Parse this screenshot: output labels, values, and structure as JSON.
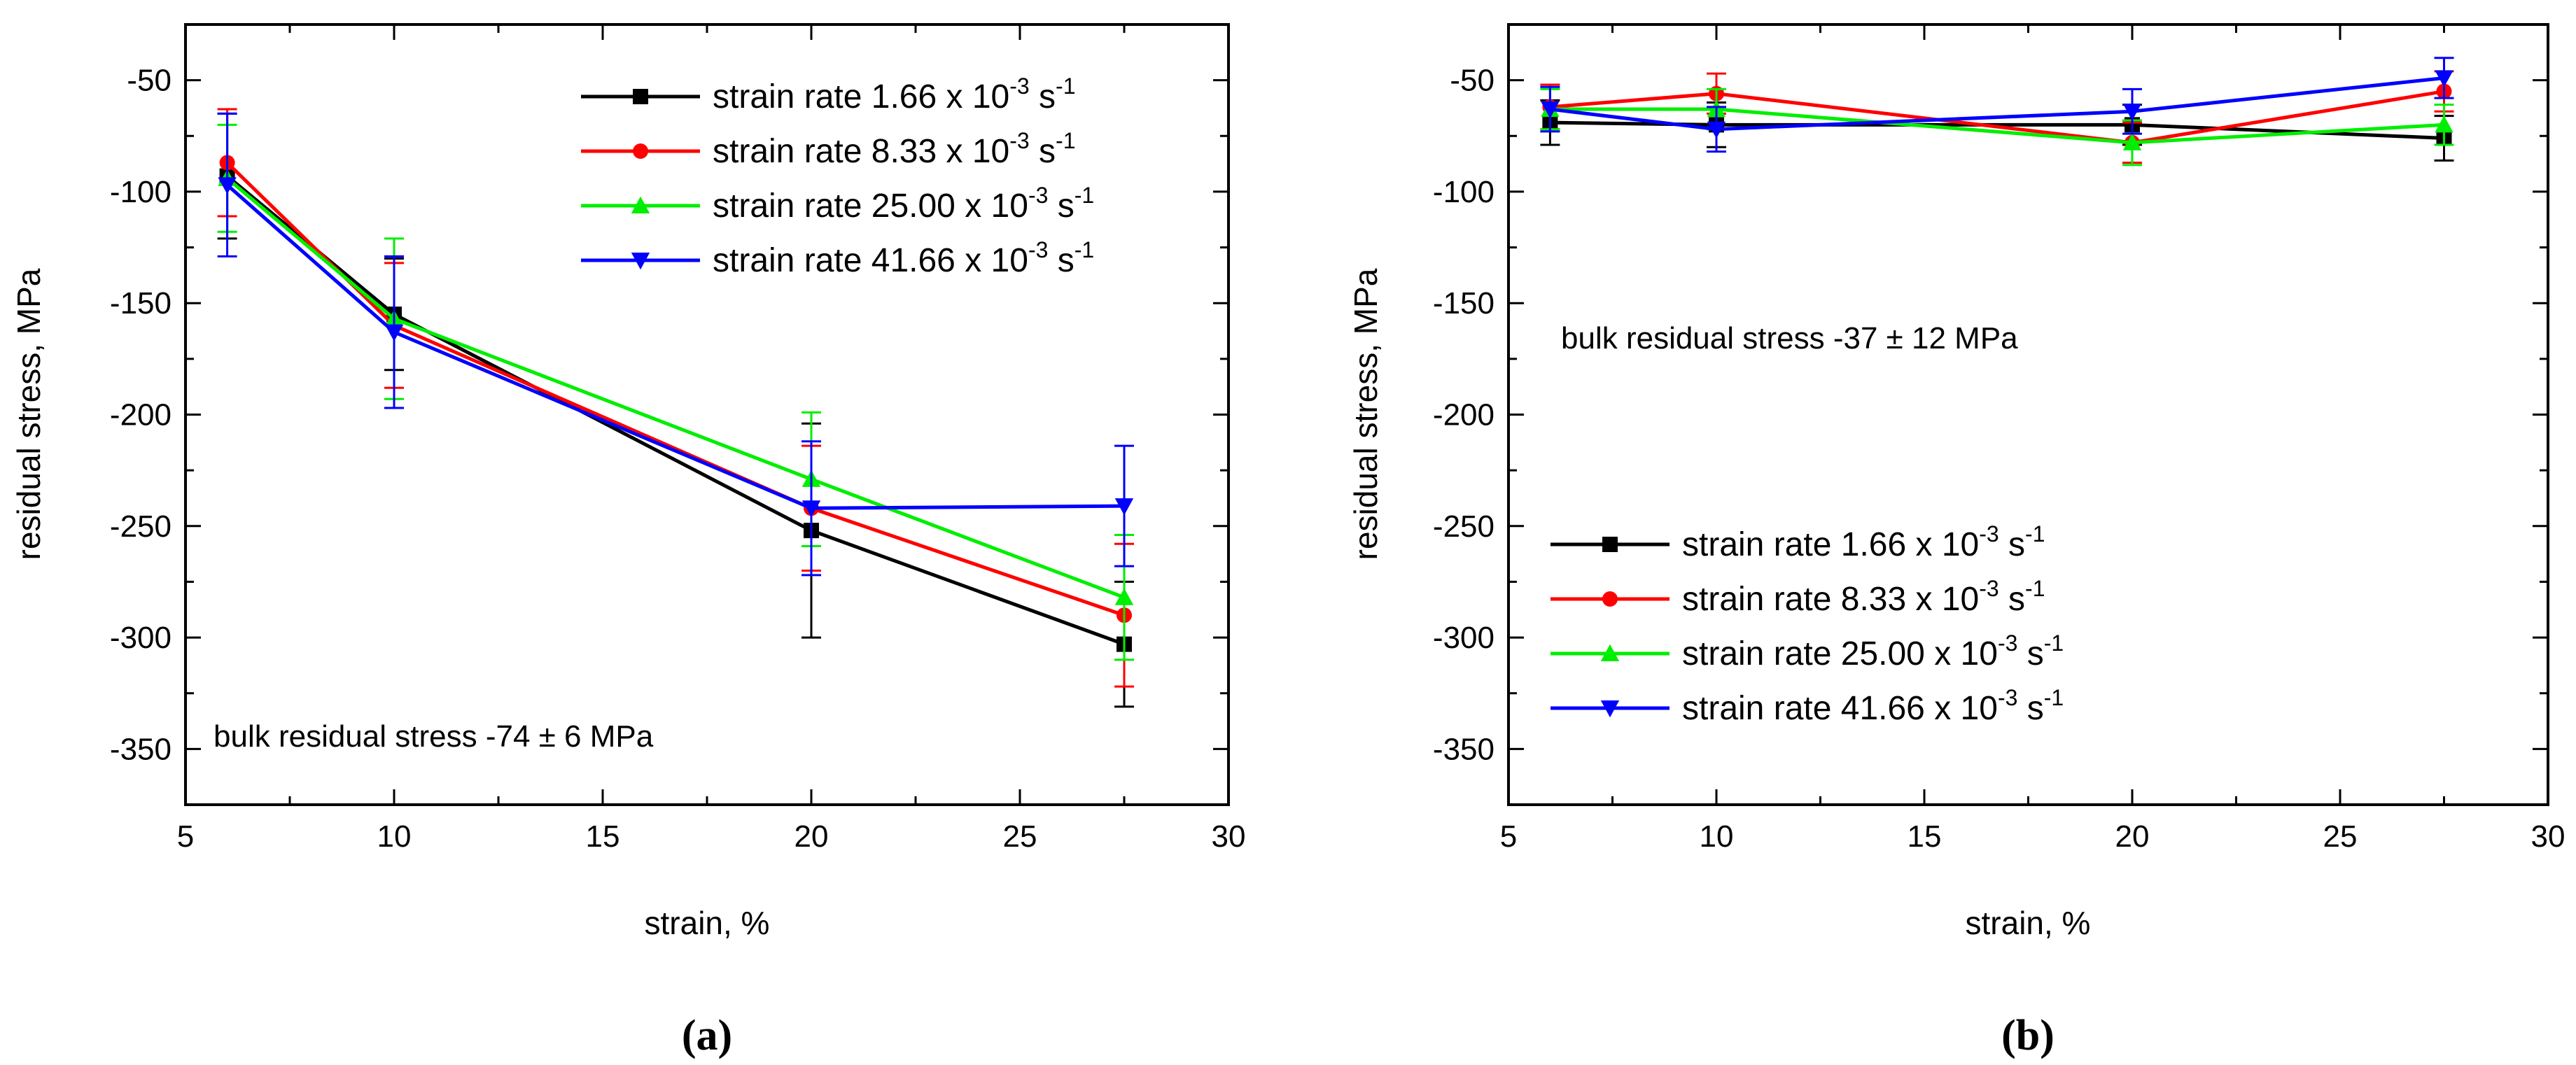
{
  "panels": [
    {
      "label": "(a)"
    },
    {
      "label": "(b)"
    }
  ],
  "chart_data": [
    {
      "type": "line",
      "xlabel": "strain, %",
      "ylabel": "residual stress, MPa",
      "xlim": [
        5,
        30
      ],
      "ylim": [
        -375,
        -25
      ],
      "x_ticks": [
        5,
        10,
        15,
        20,
        25,
        30
      ],
      "y_ticks": [
        -50,
        -100,
        -150,
        -200,
        -250,
        -300,
        -350
      ],
      "legend_position": "top-right",
      "annotation": "bulk residual stress -74 ± 6 MPa",
      "x": [
        6,
        10,
        20,
        27.5
      ],
      "series": [
        {
          "name": "strain rate 1.66 x 10-3 s-1",
          "rate": "1.66",
          "color": "#000000",
          "marker": "square",
          "values": [
            -93,
            -155,
            -252,
            -303
          ],
          "errors": [
            28,
            25,
            48,
            28
          ]
        },
        {
          "name": "strain rate 8.33 x 10-3 s-1",
          "rate": "8.33",
          "color": "#ff0000",
          "marker": "circle",
          "values": [
            -87,
            -160,
            -242,
            -290
          ],
          "errors": [
            24,
            28,
            28,
            32
          ]
        },
        {
          "name": "strain rate 25.00 x 10-3 s-1",
          "rate": "25.00",
          "color": "#00ee00",
          "marker": "triangle-up",
          "values": [
            -94,
            -157,
            -229,
            -282
          ],
          "errors": [
            24,
            36,
            30,
            28
          ]
        },
        {
          "name": "strain rate 41.66 x 10-3 s-1",
          "rate": "41.66",
          "color": "#0000ff",
          "marker": "triangle-down",
          "values": [
            -97,
            -163,
            -242,
            -241
          ],
          "errors": [
            32,
            34,
            30,
            27
          ]
        }
      ]
    },
    {
      "type": "line",
      "xlabel": "strain, %",
      "ylabel": "residual stress, MPa",
      "xlim": [
        5,
        30
      ],
      "ylim": [
        -375,
        -25
      ],
      "x_ticks": [
        5,
        10,
        15,
        20,
        25,
        30
      ],
      "y_ticks": [
        -50,
        -100,
        -150,
        -200,
        -250,
        -300,
        -350
      ],
      "legend_position": "bottom-left",
      "annotation": "bulk residual stress -37 ± 12 MPa",
      "x": [
        6,
        10,
        20,
        27.5
      ],
      "series": [
        {
          "name": "strain rate 1.66 x 10-3 s-1",
          "rate": "1.66",
          "color": "#000000",
          "marker": "square",
          "values": [
            -69,
            -70,
            -70,
            -76
          ],
          "errors": [
            10,
            10,
            9,
            10
          ]
        },
        {
          "name": "strain rate 8.33 x 10-3 s-1",
          "rate": "8.33",
          "color": "#ff0000",
          "marker": "circle",
          "values": [
            -62,
            -56,
            -78,
            -55
          ],
          "errors": [
            10,
            9,
            9,
            9
          ]
        },
        {
          "name": "strain rate 25.00 x 10-3 s-1",
          "rate": "25.00",
          "color": "#00ee00",
          "marker": "triangle-up",
          "values": [
            -63,
            -63,
            -78,
            -70
          ],
          "errors": [
            9,
            9,
            10,
            9
          ]
        },
        {
          "name": "strain rate 41.66 x 10-3 s-1",
          "rate": "41.66",
          "color": "#0000ff",
          "marker": "triangle-down",
          "values": [
            -63,
            -72,
            -64,
            -49
          ],
          "errors": [
            10,
            10,
            10,
            9
          ]
        }
      ]
    }
  ]
}
